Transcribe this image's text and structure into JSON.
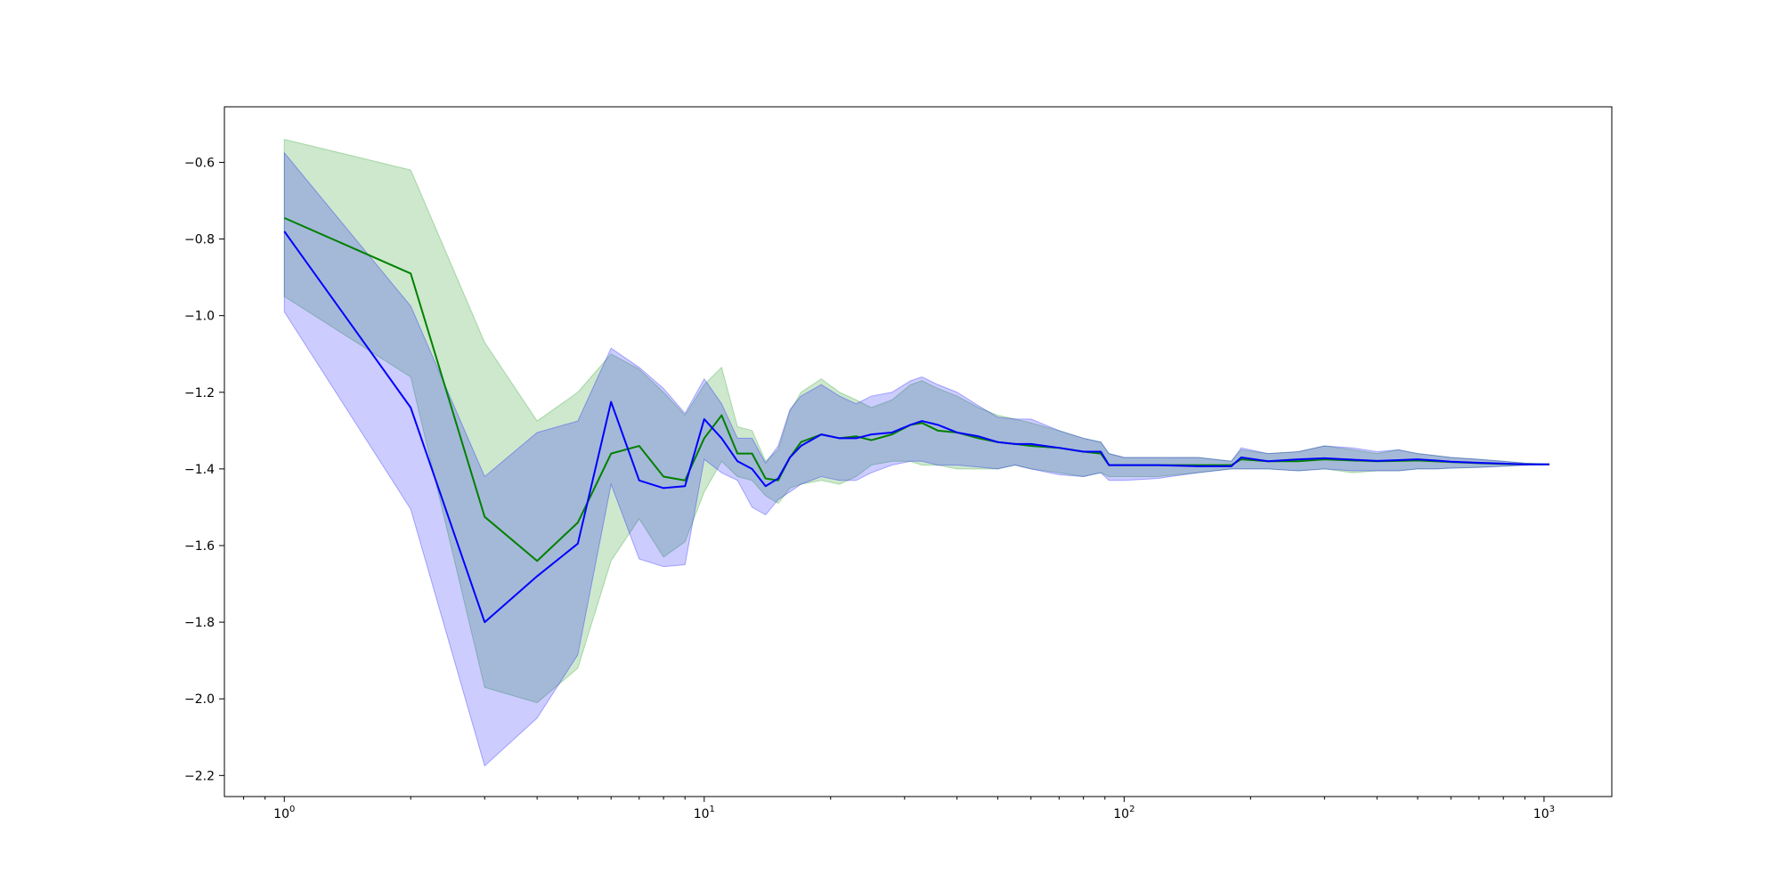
{
  "chart_data": {
    "type": "line",
    "title": "",
    "xlabel": "",
    "ylabel": "",
    "x_scale": "log",
    "xlim": [
      0.72,
      1450
    ],
    "ylim": [
      -2.255,
      -0.455
    ],
    "grid": false,
    "legend": "none",
    "x_ticks": [
      {
        "value": 1,
        "base": "10",
        "exp": "0"
      },
      {
        "value": 10,
        "base": "10",
        "exp": "1"
      },
      {
        "value": 100,
        "base": "10",
        "exp": "2"
      },
      {
        "value": 1000,
        "base": "10",
        "exp": "3"
      }
    ],
    "y_ticks": [
      {
        "value": -0.6,
        "label": "−0.6"
      },
      {
        "value": -0.8,
        "label": "−0.8"
      },
      {
        "value": -1.0,
        "label": "−1.0"
      },
      {
        "value": -1.2,
        "label": "−1.2"
      },
      {
        "value": -1.4,
        "label": "−1.4"
      },
      {
        "value": -1.6,
        "label": "−1.6"
      },
      {
        "value": -1.8,
        "label": "−1.8"
      },
      {
        "value": -2.0,
        "label": "−2.0"
      },
      {
        "value": -2.2,
        "label": "−2.2"
      }
    ],
    "series": [
      {
        "color": "#008000",
        "band_color": "#2ca02c",
        "band_opacity": 0.24,
        "x": [
          1,
          2,
          3,
          4,
          5,
          6,
          7,
          8,
          9,
          10,
          11,
          12,
          13,
          14,
          15,
          16,
          17,
          19,
          21,
          23,
          25,
          28,
          31,
          33,
          36,
          40,
          45,
          50,
          55,
          60,
          70,
          80,
          88,
          92,
          100,
          120,
          150,
          180,
          190,
          220,
          260,
          300,
          350,
          400,
          450,
          500,
          550,
          600,
          700,
          800,
          900,
          1000,
          1030
        ],
        "y": [
          -0.745,
          -0.89,
          -1.525,
          -1.64,
          -1.54,
          -1.36,
          -1.34,
          -1.42,
          -1.43,
          -1.32,
          -1.26,
          -1.36,
          -1.36,
          -1.425,
          -1.43,
          -1.37,
          -1.33,
          -1.31,
          -1.32,
          -1.315,
          -1.325,
          -1.31,
          -1.285,
          -1.28,
          -1.3,
          -1.305,
          -1.32,
          -1.33,
          -1.335,
          -1.34,
          -1.345,
          -1.355,
          -1.36,
          -1.39,
          -1.39,
          -1.39,
          -1.39,
          -1.39,
          -1.375,
          -1.38,
          -1.38,
          -1.375,
          -1.378,
          -1.38,
          -1.379,
          -1.378,
          -1.38,
          -1.382,
          -1.385,
          -1.387,
          -1.388,
          -1.388,
          -1.388
        ],
        "upper": [
          -0.54,
          -0.62,
          -1.07,
          -1.275,
          -1.2,
          -1.1,
          -1.14,
          -1.2,
          -1.26,
          -1.18,
          -1.135,
          -1.29,
          -1.3,
          -1.38,
          -1.35,
          -1.25,
          -1.2,
          -1.165,
          -1.2,
          -1.22,
          -1.24,
          -1.22,
          -1.18,
          -1.17,
          -1.19,
          -1.21,
          -1.24,
          -1.26,
          -1.27,
          -1.28,
          -1.3,
          -1.32,
          -1.33,
          -1.36,
          -1.37,
          -1.37,
          -1.37,
          -1.38,
          -1.35,
          -1.36,
          -1.355,
          -1.34,
          -1.35,
          -1.36,
          -1.35,
          -1.36,
          -1.365,
          -1.37,
          -1.375,
          -1.38,
          -1.385,
          -1.387,
          -1.388
        ],
        "lower": [
          -0.95,
          -1.16,
          -1.97,
          -2.01,
          -1.92,
          -1.64,
          -1.53,
          -1.63,
          -1.59,
          -1.46,
          -1.38,
          -1.42,
          -1.43,
          -1.47,
          -1.49,
          -1.45,
          -1.44,
          -1.43,
          -1.44,
          -1.42,
          -1.39,
          -1.38,
          -1.38,
          -1.39,
          -1.39,
          -1.4,
          -1.4,
          -1.4,
          -1.39,
          -1.4,
          -1.41,
          -1.42,
          -1.41,
          -1.42,
          -1.42,
          -1.42,
          -1.41,
          -1.4,
          -1.4,
          -1.4,
          -1.405,
          -1.4,
          -1.41,
          -1.405,
          -1.405,
          -1.4,
          -1.4,
          -1.398,
          -1.396,
          -1.393,
          -1.39,
          -1.389,
          -1.388
        ]
      },
      {
        "color": "#0000ff",
        "band_color": "#0000ff",
        "band_opacity": 0.2,
        "x": [
          1,
          2,
          3,
          4,
          5,
          6,
          7,
          8,
          9,
          10,
          11,
          12,
          13,
          14,
          15,
          16,
          17,
          19,
          21,
          23,
          25,
          28,
          31,
          33,
          36,
          40,
          45,
          50,
          55,
          60,
          70,
          80,
          88,
          92,
          100,
          120,
          150,
          180,
          190,
          220,
          260,
          300,
          350,
          400,
          450,
          500,
          550,
          600,
          700,
          800,
          900,
          1000,
          1030
        ],
        "y": [
          -0.78,
          -1.24,
          -1.8,
          -1.68,
          -1.595,
          -1.225,
          -1.43,
          -1.45,
          -1.445,
          -1.27,
          -1.32,
          -1.38,
          -1.4,
          -1.445,
          -1.425,
          -1.37,
          -1.34,
          -1.31,
          -1.32,
          -1.32,
          -1.31,
          -1.305,
          -1.285,
          -1.275,
          -1.285,
          -1.305,
          -1.315,
          -1.33,
          -1.335,
          -1.335,
          -1.345,
          -1.355,
          -1.355,
          -1.39,
          -1.39,
          -1.39,
          -1.393,
          -1.393,
          -1.37,
          -1.38,
          -1.375,
          -1.372,
          -1.376,
          -1.379,
          -1.377,
          -1.375,
          -1.378,
          -1.381,
          -1.384,
          -1.386,
          -1.388,
          -1.388,
          -1.388
        ],
        "upper": [
          -0.575,
          -0.975,
          -1.42,
          -1.305,
          -1.275,
          -1.085,
          -1.135,
          -1.19,
          -1.255,
          -1.165,
          -1.23,
          -1.32,
          -1.32,
          -1.385,
          -1.34,
          -1.245,
          -1.21,
          -1.18,
          -1.21,
          -1.23,
          -1.21,
          -1.2,
          -1.17,
          -1.16,
          -1.18,
          -1.2,
          -1.235,
          -1.265,
          -1.27,
          -1.27,
          -1.3,
          -1.32,
          -1.33,
          -1.36,
          -1.37,
          -1.37,
          -1.37,
          -1.38,
          -1.345,
          -1.36,
          -1.355,
          -1.34,
          -1.345,
          -1.355,
          -1.35,
          -1.36,
          -1.365,
          -1.37,
          -1.375,
          -1.38,
          -1.385,
          -1.387,
          -1.388
        ],
        "lower": [
          -0.99,
          -1.505,
          -2.175,
          -2.05,
          -1.885,
          -1.44,
          -1.635,
          -1.655,
          -1.65,
          -1.375,
          -1.41,
          -1.43,
          -1.5,
          -1.52,
          -1.48,
          -1.46,
          -1.44,
          -1.42,
          -1.43,
          -1.43,
          -1.41,
          -1.39,
          -1.38,
          -1.38,
          -1.39,
          -1.39,
          -1.395,
          -1.4,
          -1.39,
          -1.4,
          -1.415,
          -1.42,
          -1.41,
          -1.43,
          -1.43,
          -1.425,
          -1.41,
          -1.4,
          -1.4,
          -1.4,
          -1.405,
          -1.4,
          -1.405,
          -1.405,
          -1.405,
          -1.4,
          -1.4,
          -1.398,
          -1.396,
          -1.393,
          -1.39,
          -1.389,
          -1.388
        ]
      }
    ]
  }
}
